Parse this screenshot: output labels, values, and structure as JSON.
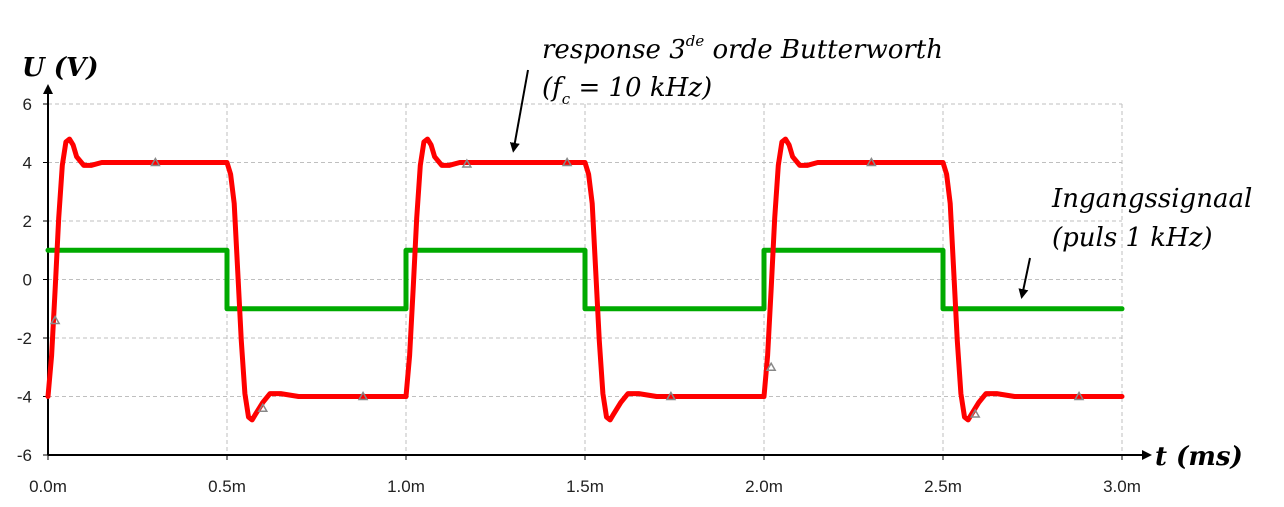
{
  "chart_data": {
    "type": "line",
    "xlabel": "t (ms)",
    "ylabel": "U (V)",
    "xlim": [
      0,
      3.0
    ],
    "ylim": [
      -6,
      6
    ],
    "grid": true,
    "x_tick_labels": [
      "0.0m",
      "0.5m",
      "1.0m",
      "1.5m",
      "2.0m",
      "2.5m",
      "3.0m"
    ],
    "x_ticks": [
      0,
      0.5,
      1.0,
      1.5,
      2.0,
      2.5,
      3.0
    ],
    "y_tick_labels": [
      "6",
      "4",
      "2",
      "0",
      "-2",
      "-4",
      "-6"
    ],
    "y_ticks": [
      6,
      4,
      2,
      0,
      -2,
      -4,
      -6
    ],
    "series": [
      {
        "name": "Ingangssignaal (puls 1 kHz)",
        "color": "#00aa00",
        "x": [
          0,
          0.5,
          0.5,
          1.0,
          1.0,
          1.5,
          1.5,
          2.0,
          2.0,
          2.5,
          2.5,
          3.0
        ],
        "y": [
          1,
          1,
          -1,
          -1,
          1,
          1,
          -1,
          -1,
          1,
          1,
          -1,
          -1
        ]
      },
      {
        "name": "response 3de orde Butterworth (fc = 10 kHz)",
        "color": "#ff0000",
        "x": [
          0.0,
          0.01,
          0.02,
          0.03,
          0.04,
          0.05,
          0.06,
          0.07,
          0.08,
          0.1,
          0.12,
          0.15,
          0.2,
          0.3,
          0.49,
          0.5,
          0.51,
          0.52,
          0.53,
          0.54,
          0.55,
          0.56,
          0.57,
          0.58,
          0.6,
          0.62,
          0.65,
          0.7,
          0.8,
          0.99,
          1.0,
          1.01,
          1.02,
          1.03,
          1.04,
          1.05,
          1.06,
          1.07,
          1.08,
          1.1,
          1.12,
          1.15,
          1.2,
          1.3,
          1.49,
          1.5,
          1.51,
          1.52,
          1.53,
          1.54,
          1.55,
          1.56,
          1.57,
          1.58,
          1.6,
          1.62,
          1.65,
          1.7,
          1.8,
          1.99,
          2.0,
          2.01,
          2.02,
          2.03,
          2.04,
          2.05,
          2.06,
          2.07,
          2.08,
          2.1,
          2.12,
          2.15,
          2.2,
          2.3,
          2.49,
          2.5,
          2.51,
          2.52,
          2.53,
          2.54,
          2.55,
          2.56,
          2.57,
          2.58,
          2.6,
          2.62,
          2.65,
          2.7,
          2.8,
          3.0
        ],
        "y": [
          -4.0,
          -2.6,
          -0.3,
          2.1,
          3.9,
          4.7,
          4.8,
          4.6,
          4.2,
          3.9,
          3.9,
          4.0,
          4.0,
          4.0,
          4.0,
          4.0,
          3.6,
          2.6,
          0.3,
          -2.1,
          -3.9,
          -4.7,
          -4.8,
          -4.6,
          -4.2,
          -3.9,
          -3.9,
          -4.0,
          -4.0,
          -4.0,
          -4.0,
          -2.6,
          -0.3,
          2.1,
          3.9,
          4.7,
          4.8,
          4.6,
          4.2,
          3.9,
          3.9,
          4.0,
          4.0,
          4.0,
          4.0,
          4.0,
          3.6,
          2.6,
          0.3,
          -2.1,
          -3.9,
          -4.7,
          -4.8,
          -4.6,
          -4.2,
          -3.9,
          -3.9,
          -4.0,
          -4.0,
          -4.0,
          -4.0,
          -2.6,
          -0.3,
          2.1,
          3.9,
          4.7,
          4.8,
          4.6,
          4.2,
          3.9,
          3.9,
          4.0,
          4.0,
          4.0,
          4.0,
          4.0,
          3.6,
          2.6,
          0.3,
          -2.1,
          -3.9,
          -4.7,
          -4.8,
          -4.6,
          -4.2,
          -3.9,
          -3.9,
          -4.0,
          -4.0,
          -4.0
        ]
      }
    ],
    "markers": {
      "color": "#888888",
      "points": [
        [
          0.02,
          -1.4
        ],
        [
          0.3,
          4.0
        ],
        [
          0.6,
          -4.4
        ],
        [
          0.88,
          -4.0
        ],
        [
          1.17,
          3.95
        ],
        [
          1.45,
          4.0
        ],
        [
          1.74,
          -4.0
        ],
        [
          2.02,
          -3.0
        ],
        [
          2.3,
          4.0
        ],
        [
          2.59,
          -4.6
        ],
        [
          2.88,
          -4.0
        ]
      ]
    },
    "annotations": [
      {
        "name": "response",
        "line1_pre": "response 3",
        "line1_sup": "de",
        "line1_post": " orde Butterworth",
        "line2_pre": "(f",
        "line2_sub": "c",
        "line2_post": " = 10 kHz)",
        "arrow_to": [
          1.3,
          4.4
        ]
      },
      {
        "name": "ingang",
        "line1": "Ingangssignaal",
        "line2": "(puls 1 kHz)",
        "arrow_to": [
          2.72,
          -0.6
        ]
      }
    ]
  }
}
